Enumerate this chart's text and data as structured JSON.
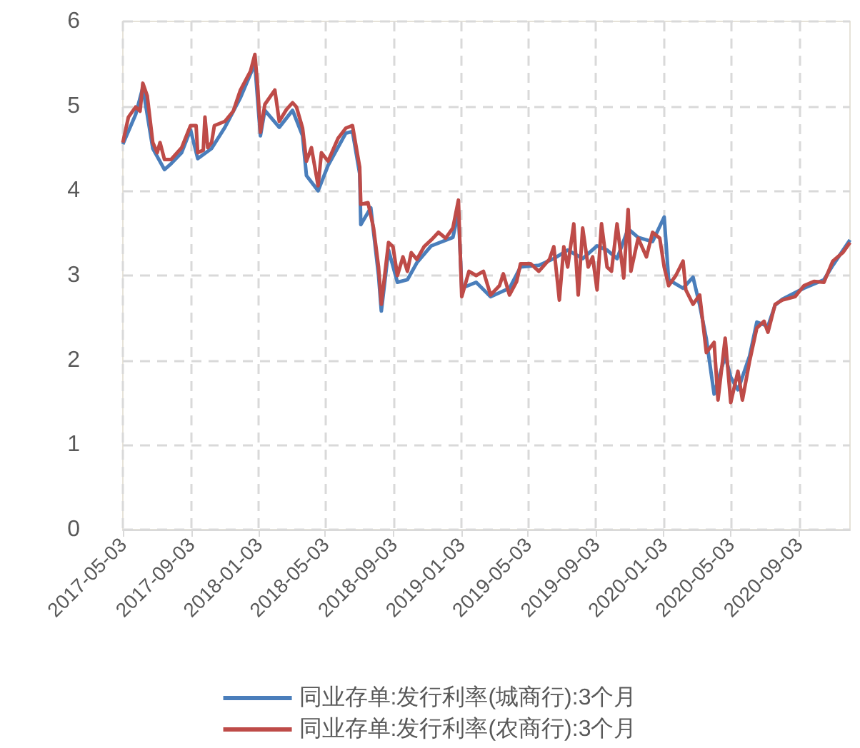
{
  "chart_data": {
    "type": "line",
    "xlim": [
      "2017-05-03",
      "2020-12-04"
    ],
    "xticks": [
      "2017-05-03",
      "2017-09-03",
      "2018-01-03",
      "2018-05-03",
      "2018-09-03",
      "2019-01-03",
      "2019-05-03",
      "2019-09-03",
      "2020-01-03",
      "2020-05-03",
      "2020-09-03"
    ],
    "ylim": [
      0,
      6
    ],
    "yticks": [
      0,
      1,
      2,
      3,
      4,
      5,
      6
    ],
    "grid": true,
    "legend": "bottom",
    "marker": "none",
    "line_style": "solid",
    "series": [
      {
        "name": "同业存单:发行利率(城商行):3个月",
        "color": "#4a7ebb",
        "x": [
          "2017-05-03",
          "2017-05-26",
          "2017-06-08",
          "2017-06-26",
          "2017-07-17",
          "2017-07-29",
          "2017-08-17",
          "2017-09-02",
          "2017-09-15",
          "2017-10-10",
          "2017-11-03",
          "2017-12-01",
          "2017-12-27",
          "2018-01-06",
          "2018-01-14",
          "2018-02-09",
          "2018-03-05",
          "2018-03-23",
          "2018-03-30",
          "2018-04-20",
          "2018-05-08",
          "2018-06-09",
          "2018-06-21",
          "2018-07-04",
          "2018-07-06",
          "2018-07-24",
          "2018-08-07",
          "2018-08-12",
          "2018-08-25",
          "2018-09-10",
          "2018-09-28",
          "2018-10-15",
          "2018-11-10",
          "2018-12-19",
          "2018-12-29",
          "2019-01-04",
          "2019-01-30",
          "2019-02-25",
          "2019-03-31",
          "2019-04-20",
          "2019-05-23",
          "2019-06-19",
          "2019-07-14",
          "2019-08-10",
          "2019-09-05",
          "2019-09-23",
          "2019-10-11",
          "2019-10-31",
          "2019-11-18",
          "2019-12-14",
          "2020-01-04",
          "2020-01-12",
          "2020-02-07",
          "2020-02-25",
          "2020-03-08",
          "2020-03-20",
          "2020-04-03",
          "2020-04-23",
          "2020-05-03",
          "2020-05-16",
          "2020-06-06",
          "2020-06-19",
          "2020-07-09",
          "2020-07-22",
          "2020-08-04",
          "2020-09-12",
          "2020-10-18",
          "2020-11-03",
          "2020-12-04"
        ],
        "values": [
          4.55,
          4.9,
          5.22,
          4.5,
          4.25,
          4.32,
          4.45,
          4.72,
          4.38,
          4.5,
          4.75,
          5.1,
          5.5,
          4.65,
          4.95,
          4.75,
          4.95,
          4.65,
          4.18,
          4.0,
          4.3,
          4.68,
          4.7,
          4.2,
          3.6,
          3.8,
          3.0,
          2.58,
          3.3,
          2.92,
          2.95,
          3.15,
          3.35,
          3.45,
          3.75,
          2.85,
          2.92,
          2.75,
          2.85,
          3.1,
          3.12,
          3.2,
          3.3,
          3.2,
          3.35,
          3.3,
          3.2,
          3.55,
          3.45,
          3.4,
          3.69,
          2.95,
          2.85,
          2.98,
          2.65,
          2.25,
          1.6,
          2.05,
          1.8,
          1.65,
          2.05,
          2.45,
          2.4,
          2.65,
          2.72,
          2.85,
          2.95,
          3.12,
          3.42
        ]
      },
      {
        "name": "同业存单:发行利率(农商行):3个月",
        "color": "#be4b48",
        "x": [
          "2017-05-03",
          "2017-05-13",
          "2017-05-26",
          "2017-06-03",
          "2017-06-08",
          "2017-06-16",
          "2017-06-26",
          "2017-07-04",
          "2017-07-09",
          "2017-07-17",
          "2017-07-29",
          "2017-08-17",
          "2017-09-02",
          "2017-09-12",
          "2017-09-15",
          "2017-09-25",
          "2017-09-28",
          "2017-10-03",
          "2017-10-10",
          "2017-10-15",
          "2017-11-03",
          "2017-11-18",
          "2017-12-01",
          "2017-12-19",
          "2017-12-27",
          "2018-01-01",
          "2018-01-06",
          "2018-01-14",
          "2018-02-01",
          "2018-02-09",
          "2018-02-22",
          "2018-03-05",
          "2018-03-12",
          "2018-03-23",
          "2018-03-30",
          "2018-04-08",
          "2018-04-20",
          "2018-04-26",
          "2018-05-08",
          "2018-05-26",
          "2018-06-09",
          "2018-06-21",
          "2018-07-04",
          "2018-07-06",
          "2018-07-19",
          "2018-07-29",
          "2018-08-07",
          "2018-08-12",
          "2018-08-25",
          "2018-09-02",
          "2018-09-10",
          "2018-09-20",
          "2018-09-28",
          "2018-10-05",
          "2018-10-15",
          "2018-10-28",
          "2018-11-10",
          "2018-11-23",
          "2018-12-06",
          "2018-12-19",
          "2018-12-29",
          "2019-01-04",
          "2019-01-17",
          "2019-01-30",
          "2019-02-12",
          "2019-02-25",
          "2019-03-13",
          "2019-03-20",
          "2019-03-31",
          "2019-04-13",
          "2019-04-20",
          "2019-05-08",
          "2019-05-23",
          "2019-06-11",
          "2019-06-19",
          "2019-06-29",
          "2019-07-07",
          "2019-07-14",
          "2019-07-25",
          "2019-08-02",
          "2019-08-10",
          "2019-08-20",
          "2019-08-28",
          "2019-09-05",
          "2019-09-13",
          "2019-09-23",
          "2019-10-01",
          "2019-10-11",
          "2019-10-23",
          "2019-10-31",
          "2019-11-05",
          "2019-11-18",
          "2019-12-03",
          "2019-12-14",
          "2019-12-27",
          "2020-01-04",
          "2020-01-12",
          "2020-01-25",
          "2020-02-07",
          "2020-02-12",
          "2020-02-25",
          "2020-03-08",
          "2020-03-20",
          "2020-04-03",
          "2020-04-10",
          "2020-04-23",
          "2020-05-03",
          "2020-05-16",
          "2020-05-24",
          "2020-06-06",
          "2020-06-19",
          "2020-07-02",
          "2020-07-09",
          "2020-07-22",
          "2020-08-04",
          "2020-08-27",
          "2020-09-12",
          "2020-09-30",
          "2020-10-18",
          "2020-11-03",
          "2020-11-21",
          "2020-12-04"
        ],
        "values": [
          4.57,
          4.87,
          4.99,
          4.94,
          5.27,
          5.12,
          4.57,
          4.45,
          4.57,
          4.37,
          4.37,
          4.51,
          4.77,
          4.77,
          4.45,
          4.48,
          4.87,
          4.51,
          4.57,
          4.77,
          4.82,
          4.94,
          5.19,
          5.41,
          5.61,
          5.24,
          4.69,
          5.02,
          5.19,
          4.82,
          4.96,
          5.04,
          4.99,
          4.74,
          4.35,
          4.51,
          4.06,
          4.45,
          4.35,
          4.62,
          4.74,
          4.77,
          4.28,
          3.84,
          3.86,
          3.56,
          3.1,
          2.66,
          3.39,
          3.34,
          3.0,
          3.22,
          3.05,
          3.27,
          3.19,
          3.34,
          3.42,
          3.51,
          3.44,
          3.56,
          3.89,
          2.75,
          3.05,
          3.0,
          3.05,
          2.77,
          2.88,
          3.02,
          2.77,
          2.93,
          3.14,
          3.14,
          3.05,
          3.19,
          3.34,
          2.71,
          3.34,
          3.1,
          3.61,
          2.77,
          3.56,
          3.1,
          3.22,
          2.83,
          3.61,
          3.1,
          3.05,
          3.61,
          2.97,
          3.78,
          3.05,
          3.44,
          3.22,
          3.51,
          3.44,
          3.1,
          2.88,
          3.0,
          3.17,
          2.83,
          2.66,
          2.77,
          2.09,
          2.21,
          1.53,
          2.26,
          1.5,
          1.87,
          1.53,
          1.99,
          2.38,
          2.46,
          2.33,
          2.66,
          2.71,
          2.75,
          2.88,
          2.93,
          2.92,
          3.17,
          3.27,
          3.39
        ]
      }
    ]
  }
}
